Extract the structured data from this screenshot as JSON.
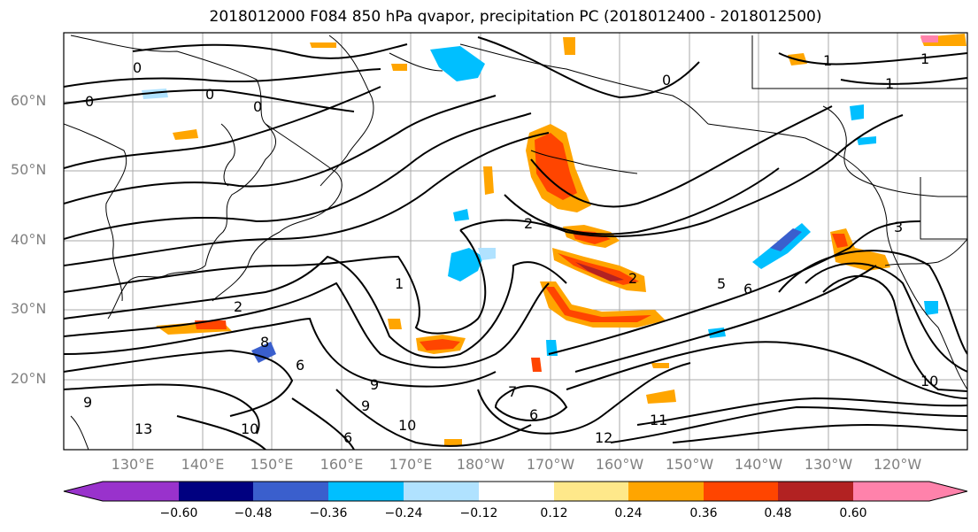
{
  "title": "2018012000 F084 850 hPa qvapor, precipitation PC (2018012400 - 2018012500)",
  "lat_labels": [
    "60°N",
    "50°N",
    "40°N",
    "30°N",
    "20°N"
  ],
  "lon_labels": [
    "130°E",
    "140°E",
    "150°E",
    "160°E",
    "170°E",
    "180°W",
    "170°W",
    "160°W",
    "150°W",
    "140°W",
    "130°W",
    "120°W"
  ],
  "colorbar": {
    "colors": [
      "#9932cc",
      "#000080",
      "#3a5fcd",
      "#00bfff",
      "#b0e2ff",
      "#ffffff",
      "#fee88a",
      "#ffa500",
      "#ff4500",
      "#b22222",
      "#ff82ab"
    ],
    "tick_labels": [
      "−0.60",
      "−0.48",
      "−0.36",
      "−0.24",
      "−0.12",
      "0.12",
      "0.24",
      "0.36",
      "0.48",
      "0.60"
    ]
  },
  "contour_labels": [
    "0",
    "0",
    "0",
    "0",
    "0",
    "1",
    "1",
    "1",
    "1",
    "2",
    "2",
    "2",
    "3",
    "5",
    "6",
    "6",
    "6",
    "6",
    "7",
    "8",
    "9",
    "9",
    "9",
    "10",
    "10",
    "10",
    "11",
    "12",
    "13"
  ]
}
